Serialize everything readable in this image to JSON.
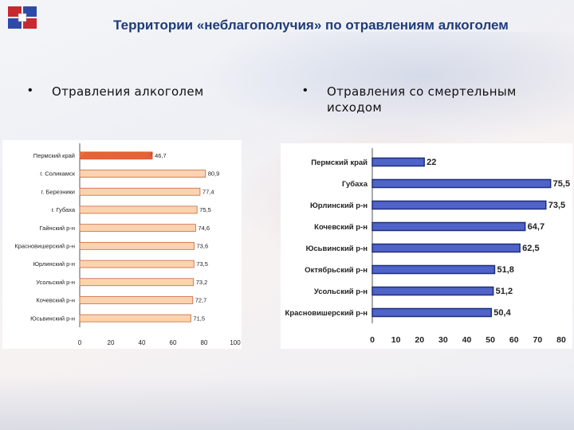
{
  "header": {
    "title": "Территории «неблагополучия» по отравлениям алкоголем"
  },
  "bullets": {
    "left": "Отравления алкоголем",
    "right": "Отравления со смертельным исходом"
  },
  "colors": {
    "left_highlight": "#f06a3a",
    "left_bar": "#fbd3b0",
    "left_bar_border": "#c9673a",
    "right_bar": "#4f63c8",
    "right_bar_border": "#1f2f7a"
  },
  "chart_data": [
    {
      "type": "bar",
      "orientation": "horizontal",
      "categories": [
        "Пермский край",
        "г. Соликамск",
        "г. Березники",
        "г. Губаха",
        "Гайнский р-н",
        "Красновишерский р-н",
        "Юрлинский р-н",
        "Усольский р-н",
        "Кочевский р-н",
        "Юсьвинский р-н"
      ],
      "values": [
        46.7,
        80.9,
        77.4,
        75.5,
        74.6,
        73.6,
        73.5,
        73.2,
        72.7,
        71.5
      ],
      "value_labels": [
        "46,7",
        "80,9",
        "77,4",
        "75,5",
        "74,6",
        "73,6",
        "73,5",
        "73,2",
        "72,7",
        "71,5"
      ],
      "xlim": [
        0,
        100
      ],
      "xticks": [
        "0",
        "20",
        "40",
        "60",
        "80",
        "100"
      ],
      "grid": false
    },
    {
      "type": "bar",
      "orientation": "horizontal",
      "categories": [
        "Пермский край",
        "Губаха",
        "Юрлинский р-н",
        "Кочевский р-н",
        "Юсьвинский р-н",
        "Октябрьский р-н",
        "Усольский р-н",
        "Красновишерский р-н"
      ],
      "values": [
        22,
        75.5,
        73.5,
        64.7,
        62.5,
        51.8,
        51.2,
        50.4
      ],
      "value_labels": [
        "22",
        "75,5",
        "73,5",
        "64,7",
        "62,5",
        "51,8",
        "51,2",
        "50,4"
      ],
      "xlim": [
        0,
        80
      ],
      "xticks": [
        "0",
        "10",
        "20",
        "30",
        "40",
        "50",
        "60",
        "70",
        "80"
      ],
      "grid": false
    }
  ]
}
